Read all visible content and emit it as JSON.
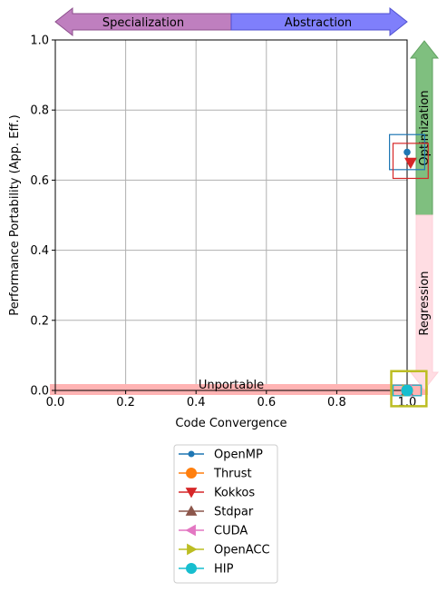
{
  "chart_data": {
    "type": "scatter",
    "xlabel": "Code Convergence",
    "ylabel": "Performance Portability (App. Eff.)",
    "xlim": [
      0.0,
      1.0
    ],
    "ylim": [
      0.0,
      1.0
    ],
    "grid": true,
    "xticks": [
      "0.0",
      "0.2",
      "0.4",
      "0.6",
      "0.8",
      "1.0"
    ],
    "yticks": [
      "0.0",
      "0.2",
      "0.4",
      "0.6",
      "0.8",
      "1.0"
    ],
    "arrows": {
      "left_label": "Specialization",
      "right_label": "Abstraction",
      "up_label": "Optimization",
      "down_label": "Regression",
      "bottom_band_label": "Unportable"
    },
    "colors": {
      "specialization": "#bf7fbf",
      "abstraction": "#7f7ffb",
      "optimization": "#7fbf7f",
      "regression": "#ffdde3",
      "unportable": "#ffb3b3"
    },
    "series": [
      {
        "name": "OpenMP",
        "color": "#1f77b4",
        "marker": "point",
        "x": 1.0,
        "y": 0.68,
        "box": [
          0.95,
          1.05,
          0.63,
          0.73
        ]
      },
      {
        "name": "Thrust",
        "color": "#ff7f0e",
        "marker": "circle",
        "x": 1.0,
        "y": 0.0,
        "box": [
          0.96,
          1.04,
          -0.015,
          0.015
        ]
      },
      {
        "name": "Kokkos",
        "color": "#d62728",
        "marker": "triangle-down",
        "x": 1.01,
        "y": 0.65,
        "box": [
          0.96,
          1.06,
          0.605,
          0.705
        ]
      },
      {
        "name": "Stdpar",
        "color": "#8c564b",
        "marker": "triangle-up",
        "x": 1.0,
        "y": 0.0,
        "box": [
          0.96,
          1.04,
          -0.015,
          0.015
        ]
      },
      {
        "name": "CUDA",
        "color": "#e377c2",
        "marker": "triangle-left",
        "x": 1.0,
        "y": 0.0,
        "box": [
          0.96,
          1.04,
          -0.015,
          0.015
        ]
      },
      {
        "name": "OpenACC",
        "color": "#bcbd22",
        "marker": "triangle-right",
        "x": 1.0,
        "y": 0.0,
        "box": [
          0.955,
          1.055,
          -0.045,
          0.055
        ]
      },
      {
        "name": "HIP",
        "color": "#17becf",
        "marker": "circle",
        "x": 1.0,
        "y": 0.0,
        "box": [
          0.96,
          1.04,
          -0.015,
          0.015
        ]
      }
    ]
  }
}
